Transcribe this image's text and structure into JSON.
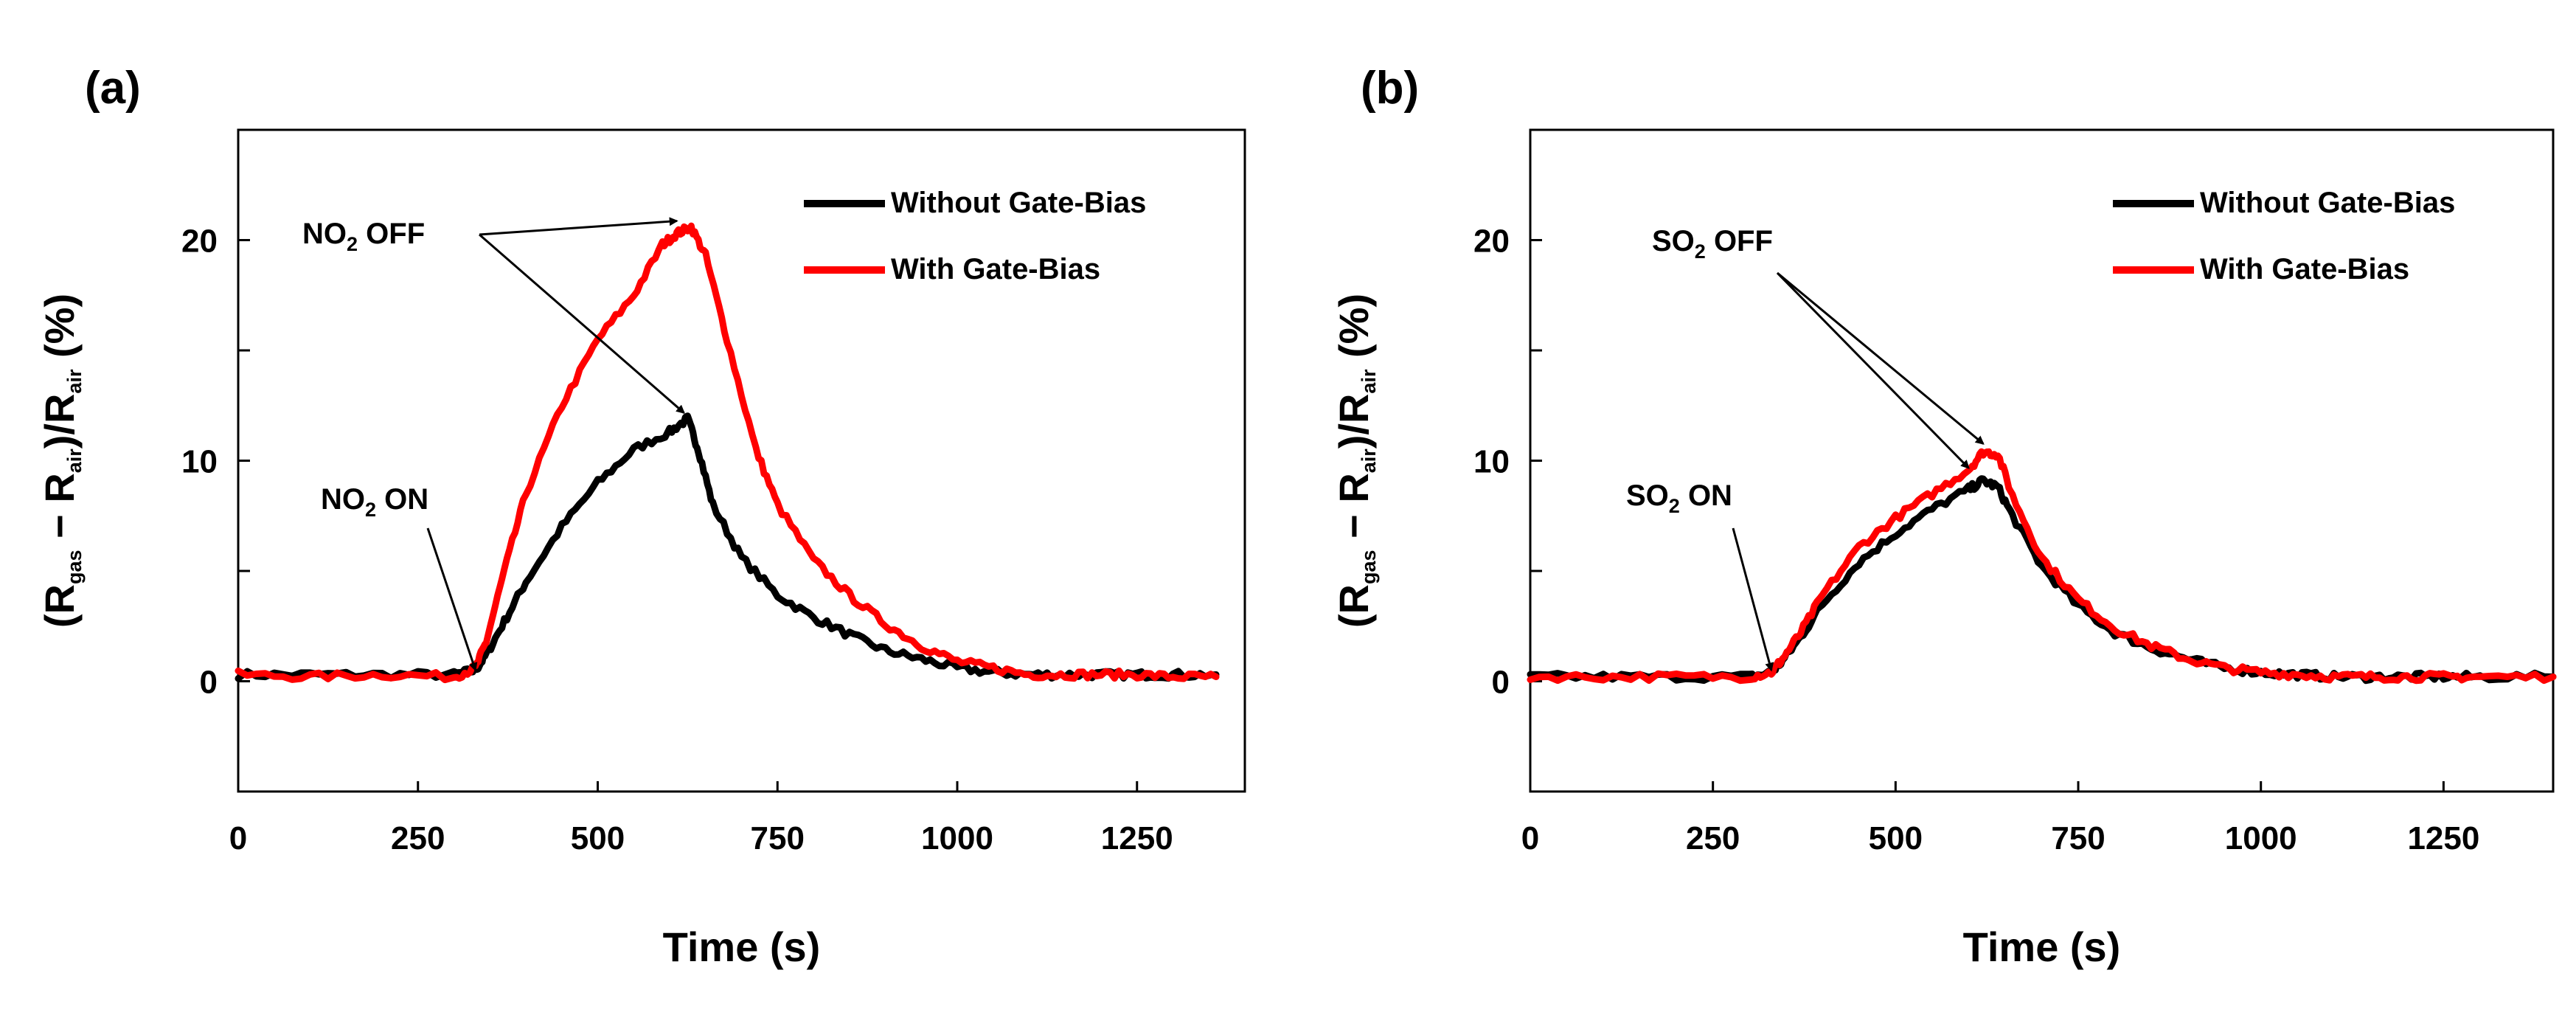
{
  "chart_data": [
    {
      "type": "line",
      "panel_label": "(a)",
      "gas": "NO",
      "gas_sub": "2",
      "xlabel": "Time (s)",
      "ylabel_parts": [
        "(R",
        "gas",
        " − R",
        "air",
        ")/R",
        "air",
        " (%)"
      ],
      "xlim": [
        0,
        1400
      ],
      "ylim": [
        -5,
        25
      ],
      "xticks": [
        0,
        250,
        500,
        750,
        1000,
        1250
      ],
      "xtick_labels": [
        "0",
        "250",
        "500",
        "750",
        "1000",
        "1250"
      ],
      "yticks": [
        -5,
        0,
        5,
        10,
        15,
        20,
        25
      ],
      "ytick_labels": [
        "",
        "0",
        "",
        "10",
        "",
        "20",
        ""
      ],
      "legend_position": "top-right",
      "series": [
        {
          "name": "Without Gate-Bias",
          "color": "#000000",
          "x": [
            0,
            100,
            200,
            300,
            330,
            345,
            370,
            400,
            450,
            500,
            550,
            600,
            625,
            640,
            660,
            700,
            750,
            800,
            850,
            900,
            950,
            1000,
            1050,
            1100,
            1150,
            1200,
            1250,
            1300,
            1360
          ],
          "y": [
            0.3,
            0.3,
            0.3,
            0.3,
            0.5,
            1.2,
            2.7,
            4.5,
            7.0,
            9.0,
            10.5,
            11.3,
            11.9,
            10.5,
            8.0,
            5.6,
            3.9,
            2.9,
            2.1,
            1.4,
            1.0,
            0.6,
            0.4,
            0.3,
            0.3,
            0.3,
            0.3,
            0.3,
            0.3
          ]
        },
        {
          "name": "With Gate-Bias",
          "color": "#ff0000",
          "x": [
            0,
            100,
            200,
            300,
            330,
            345,
            370,
            400,
            450,
            500,
            550,
            590,
            610,
            630,
            650,
            680,
            720,
            750,
            800,
            850,
            900,
            950,
            1000,
            1050,
            1100,
            1150,
            1200,
            1250,
            1300,
            1360
          ],
          "y": [
            0.3,
            0.2,
            0.3,
            0.2,
            0.6,
            1.8,
            5.0,
            8.5,
            12.5,
            15.5,
            17.5,
            19.8,
            20.3,
            20.6,
            19.3,
            15.5,
            10.5,
            8.0,
            5.5,
            3.9,
            2.6,
            1.6,
            0.9,
            0.6,
            0.3,
            0.3,
            0.3,
            0.3,
            0.2,
            0.2
          ]
        }
      ],
      "annotations": {
        "on_label": "ON",
        "off_label": "OFF",
        "on_at": [
          330,
          0.3
        ],
        "off_targets": [
          [
            610,
            20.6
          ],
          [
            620,
            11.9
          ]
        ]
      }
    },
    {
      "type": "line",
      "panel_label": "(b)",
      "gas": "SO",
      "gas_sub": "2",
      "xlabel": "Time (s)",
      "ylabel_parts": [
        "(R",
        "gas",
        " − R",
        "air",
        ")/R",
        "air",
        " (%)"
      ],
      "xlim": [
        0,
        1400
      ],
      "ylim": [
        -5,
        25
      ],
      "xticks": [
        0,
        250,
        500,
        750,
        1000,
        1250
      ],
      "xtick_labels": [
        "0",
        "250",
        "500",
        "750",
        "1000",
        "1250"
      ],
      "yticks": [
        -5,
        0,
        5,
        10,
        15,
        20,
        25
      ],
      "ytick_labels": [
        "",
        "0",
        "",
        "10",
        "",
        "20",
        ""
      ],
      "legend_position": "top-right",
      "series": [
        {
          "name": "Without Gate-Bias",
          "color": "#000000",
          "x": [
            0,
            100,
            200,
            300,
            330,
            345,
            370,
            400,
            450,
            500,
            550,
            600,
            620,
            640,
            660,
            700,
            750,
            800,
            850,
            900,
            950,
            1000,
            1050,
            1100,
            1150,
            1200,
            1250,
            1300,
            1400
          ],
          "y": [
            0.2,
            0.2,
            0.2,
            0.2,
            0.4,
            0.9,
            2.0,
            3.5,
            5.4,
            6.7,
            7.8,
            8.7,
            9.1,
            8.8,
            7.5,
            5.2,
            3.4,
            2.2,
            1.5,
            1.0,
            0.6,
            0.4,
            0.3,
            0.2,
            0.2,
            0.2,
            0.2,
            0.2,
            0.2
          ]
        },
        {
          "name": "With Gate-Bias",
          "color": "#ff0000",
          "x": [
            0,
            100,
            200,
            300,
            330,
            345,
            370,
            400,
            450,
            500,
            550,
            600,
            620,
            640,
            660,
            700,
            750,
            800,
            850,
            900,
            950,
            1000,
            1050,
            1100,
            1150,
            1200,
            1250,
            1300,
            1400
          ],
          "y": [
            0.2,
            0.2,
            0.2,
            0.2,
            0.4,
            1.0,
            2.2,
            3.9,
            6.1,
            7.4,
            8.5,
            9.6,
            10.4,
            10.3,
            8.4,
            5.6,
            3.7,
            2.4,
            1.6,
            1.0,
            0.6,
            0.4,
            0.3,
            0.2,
            0.2,
            0.2,
            0.2,
            0.2,
            0.2
          ]
        }
      ],
      "annotations": {
        "on_label": "ON",
        "off_label": "OFF",
        "on_at": [
          330,
          0.3
        ],
        "off_targets": [
          [
            620,
            10.5
          ],
          [
            600,
            9.4
          ]
        ]
      }
    }
  ]
}
